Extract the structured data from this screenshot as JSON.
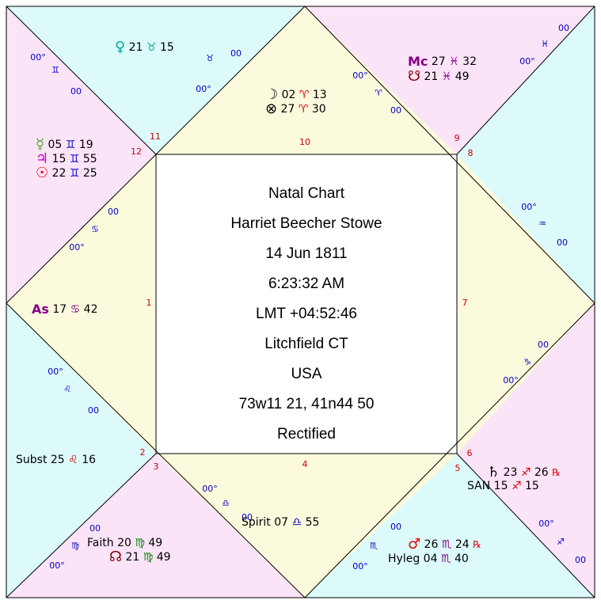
{
  "center": [
    "Natal Chart",
    "Harriet Beecher Stowe",
    "14 Jun 1811",
    "6:23:32 AM",
    "LMT +04:52:46",
    "Litchfield CT",
    "USA",
    "73w11 21, 41n44 50",
    "Rectified"
  ],
  "houses": [
    "1",
    "2",
    "3",
    "4",
    "5",
    "6",
    "7",
    "8",
    "9",
    "10",
    "11",
    "12"
  ],
  "cusps": [
    {
      "sign": "♋",
      "deg": "00°",
      "min": "00"
    },
    {
      "sign": "♌",
      "deg": "00°",
      "min": "00"
    },
    {
      "sign": "♍",
      "deg": "00°",
      "min": "00"
    },
    {
      "sign": "♎",
      "deg": "00°",
      "min": "00"
    },
    {
      "sign": "♏",
      "deg": "00°",
      "min": "00"
    },
    {
      "sign": "♐",
      "deg": "00°",
      "min": "00"
    },
    {
      "sign": "♑",
      "deg": "00°",
      "min": "00"
    },
    {
      "sign": "♒",
      "deg": "00°",
      "min": "00"
    },
    {
      "sign": "♓",
      "deg": "00°",
      "min": "00"
    },
    {
      "sign": "♈",
      "deg": "00°",
      "min": "00"
    },
    {
      "sign": "♉",
      "deg": "00°",
      "min": "00"
    },
    {
      "sign": "♊",
      "deg": "00°",
      "min": "00"
    }
  ],
  "points": [
    {
      "glyph": "♀",
      "deg": "21",
      "sign": "♉",
      "min": "15"
    },
    {
      "glyph": "☿",
      "deg": "05",
      "sign": "♊",
      "min": "19"
    },
    {
      "glyph": "♃",
      "deg": "15",
      "sign": "♊",
      "min": "55"
    },
    {
      "glyph": "☉",
      "deg": "22",
      "sign": "♊",
      "min": "25"
    },
    {
      "glyph": "As",
      "deg": "17",
      "sign": "♋",
      "min": "42"
    },
    {
      "glyph": "Subst",
      "deg": "25",
      "sign": "♌",
      "min": "16"
    },
    {
      "glyph": "Faith",
      "deg": "20",
      "sign": "♍",
      "min": "49"
    },
    {
      "glyph": "☊",
      "deg": "21",
      "sign": "♍",
      "min": "49"
    },
    {
      "glyph": "Spirit",
      "deg": "07",
      "sign": "♎",
      "min": "55"
    },
    {
      "glyph": "♂",
      "deg": "26",
      "sign": "♏",
      "min": "24",
      "retro": "℞"
    },
    {
      "glyph": "Hyleg",
      "deg": "04",
      "sign": "♏",
      "min": "40"
    },
    {
      "glyph": "♄",
      "deg": "23",
      "sign": "♐",
      "min": "26",
      "retro": "℞"
    },
    {
      "glyph": "SAN",
      "deg": "15",
      "sign": "♐",
      "min": "15"
    },
    {
      "glyph": "Mc",
      "deg": "27",
      "sign": "♓",
      "min": "32"
    },
    {
      "glyph": "☋",
      "deg": "21",
      "sign": "♓",
      "min": "49"
    },
    {
      "glyph": "☽",
      "deg": "02",
      "sign": "♈",
      "min": "13"
    },
    {
      "glyph": "⊗",
      "deg": "27",
      "sign": "♈",
      "min": "30"
    }
  ]
}
